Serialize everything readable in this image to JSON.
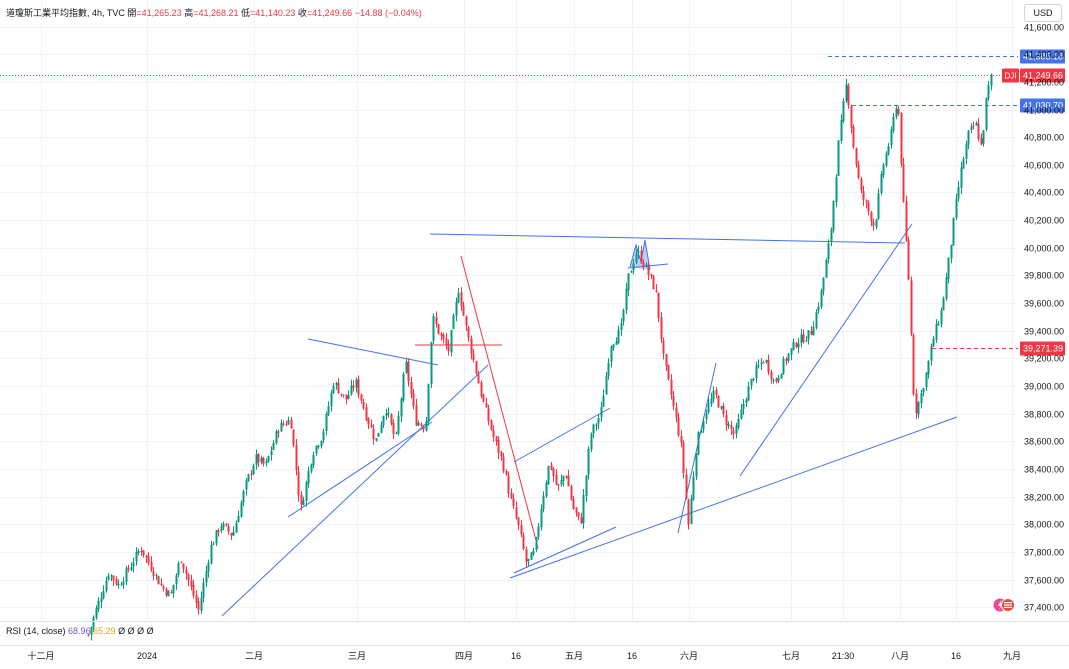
{
  "header": {
    "symbol": "道瓊斯工業平均指數, 4h, TVC",
    "open_label": "開",
    "open": "=41,265.23",
    "high_label": "高",
    "high": "=41,268.21",
    "low_label": "低",
    "low": "=41,140.23",
    "close_label": "收",
    "close": "=41,249.66",
    "change": "−14.88 (−0.04%)"
  },
  "currency": "USD",
  "rsi": {
    "label": "RSI (14, close)",
    "value1": "68.96",
    "value2": "65.29",
    "extra": "Ø Ø Ø Ø"
  },
  "colors": {
    "up": "#089981",
    "down": "#f23645",
    "trendline": "#4472e8",
    "grid": "#f0f3fa",
    "axis_text": "#131722"
  },
  "chart_data": {
    "type": "candlestick",
    "ylim": [
      37300,
      41720
    ],
    "y_ticks": [
      37400,
      37600,
      37800,
      38000,
      38200,
      38400,
      38600,
      38800,
      39000,
      39200,
      39400,
      39600,
      39800,
      40000,
      40200,
      40400,
      40600,
      40800,
      41000,
      41200,
      41400,
      41600
    ],
    "y_tick_labels": [
      "37,400.00",
      "37,600.00",
      "37,800.00",
      "38,000.00",
      "38,200.00",
      "38,400.00",
      "38,600.00",
      "38,800.00",
      "39,000.00",
      "39,200.00",
      "39,400.00",
      "39,600.00",
      "39,800.00",
      "40,000.00",
      "40,200.00",
      "40,400.00",
      "40,600.00",
      "40,800.00",
      "41,000.00",
      "41,200.00",
      "41,400.00",
      "41,600.00"
    ],
    "x_labels": [
      {
        "label": "十二月",
        "slot": 41
      },
      {
        "label": "2024",
        "slot": 147
      },
      {
        "label": "二月",
        "slot": 254
      },
      {
        "label": "三月",
        "slot": 357
      },
      {
        "label": "四月",
        "slot": 464
      },
      {
        "label": "16",
        "slot": 516
      },
      {
        "label": "五月",
        "slot": 574
      },
      {
        "label": "16",
        "slot": 632
      },
      {
        "label": "六月",
        "slot": 689
      },
      {
        "label": "七月",
        "slot": 791
      },
      {
        "label": "21:30",
        "slot": 843
      },
      {
        "label": "八月",
        "slot": 900
      },
      {
        "label": "16",
        "slot": 956
      },
      {
        "label": "九月",
        "slot": 1012
      }
    ],
    "price_labels": [
      {
        "text": "41,385.18",
        "value": 41385.18,
        "style": "dashed-blue"
      },
      {
        "text": "41,249.66",
        "value": 41249.66,
        "style": "last",
        "symbol": "DJI"
      },
      {
        "text": "41,030.70",
        "value": 41030.7,
        "style": "dashed-blue"
      },
      {
        "text": "39,271.39",
        "value": 39271.39,
        "style": "dashed-red"
      }
    ],
    "anchors": [
      [
        88,
        37200
      ],
      [
        95,
        37370
      ],
      [
        108,
        37650
      ],
      [
        118,
        37560
      ],
      [
        130,
        37700
      ],
      [
        140,
        37830
      ],
      [
        150,
        37700
      ],
      [
        160,
        37560
      ],
      [
        170,
        37480
      ],
      [
        180,
        37760
      ],
      [
        190,
        37550
      ],
      [
        198,
        37380
      ],
      [
        210,
        37830
      ],
      [
        220,
        38000
      ],
      [
        232,
        37920
      ],
      [
        245,
        38280
      ],
      [
        255,
        38480
      ],
      [
        265,
        38420
      ],
      [
        278,
        38700
      ],
      [
        290,
        38760
      ],
      [
        300,
        38100
      ],
      [
        312,
        38520
      ],
      [
        322,
        38650
      ],
      [
        333,
        39030
      ],
      [
        345,
        38900
      ],
      [
        355,
        39030
      ],
      [
        365,
        38800
      ],
      [
        375,
        38600
      ],
      [
        385,
        38850
      ],
      [
        395,
        38600
      ],
      [
        405,
        39170
      ],
      [
        415,
        38750
      ],
      [
        425,
        38700
      ],
      [
        432,
        39500
      ],
      [
        440,
        39360
      ],
      [
        448,
        39260
      ],
      [
        458,
        39700
      ],
      [
        466,
        39400
      ],
      [
        474,
        39150
      ],
      [
        482,
        38900
      ],
      [
        492,
        38650
      ],
      [
        502,
        38450
      ],
      [
        510,
        38180
      ],
      [
        518,
        37980
      ],
      [
        526,
        37710
      ],
      [
        534,
        37800
      ],
      [
        541,
        38150
      ],
      [
        549,
        38450
      ],
      [
        557,
        38250
      ],
      [
        565,
        38380
      ],
      [
        572,
        38130
      ],
      [
        580,
        38000
      ],
      [
        590,
        38650
      ],
      [
        600,
        38800
      ],
      [
        610,
        39300
      ],
      [
        620,
        39400
      ],
      [
        628,
        39790
      ],
      [
        636,
        39980
      ],
      [
        645,
        39860
      ],
      [
        655,
        39690
      ],
      [
        663,
        39200
      ],
      [
        672,
        38880
      ],
      [
        680,
        38600
      ],
      [
        688,
        38000
      ],
      [
        696,
        38580
      ],
      [
        704,
        38800
      ],
      [
        714,
        38950
      ],
      [
        724,
        38760
      ],
      [
        734,
        38640
      ],
      [
        744,
        38900
      ],
      [
        754,
        39100
      ],
      [
        764,
        39200
      ],
      [
        774,
        39020
      ],
      [
        784,
        39180
      ],
      [
        796,
        39320
      ],
      [
        810,
        39380
      ],
      [
        820,
        39650
      ],
      [
        830,
        40100
      ],
      [
        838,
        40750
      ],
      [
        846,
        41200
      ],
      [
        852,
        40780
      ],
      [
        860,
        40400
      ],
      [
        866,
        40300
      ],
      [
        874,
        40150
      ],
      [
        882,
        40580
      ],
      [
        890,
        40800
      ],
      [
        897,
        41100
      ],
      [
        903,
        40300
      ],
      [
        908,
        39780
      ],
      [
        914,
        38800
      ],
      [
        919,
        38900
      ],
      [
        926,
        39100
      ],
      [
        933,
        39350
      ],
      [
        941,
        39550
      ],
      [
        949,
        39950
      ],
      [
        955,
        40300
      ],
      [
        961,
        40580
      ],
      [
        968,
        40820
      ],
      [
        975,
        40900
      ],
      [
        981,
        40720
      ],
      [
        986,
        41100
      ],
      [
        991,
        41250
      ]
    ]
  }
}
